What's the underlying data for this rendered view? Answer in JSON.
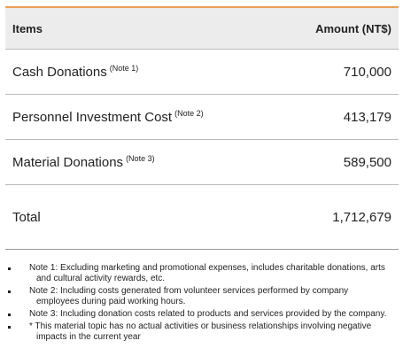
{
  "table": {
    "header": [
      "Items",
      "Amount (NT$)"
    ],
    "rows": [
      [
        "Cash Donations",
        "(Note 1)",
        "710,000"
      ],
      [
        "Personnel Investment Cost",
        "(Note 2)",
        "413,179"
      ],
      [
        "Material Donations",
        "(Note 3)",
        "589,500"
      ]
    ],
    "total": [
      "Total",
      "1,712,679"
    ]
  },
  "notes": [
    "Note 1: Excluding marketing and promotional expenses, includes charitable donations, arts and cultural activity rewards, etc.",
    "Note 2: Including costs generated from volunteer services performed by company employees during paid working hours.",
    "Note 3: Including donation costs related to products and services provided by the company.",
    "* This material topic has no actual activities or business relationships involving negative impacts in the current year"
  ]
}
